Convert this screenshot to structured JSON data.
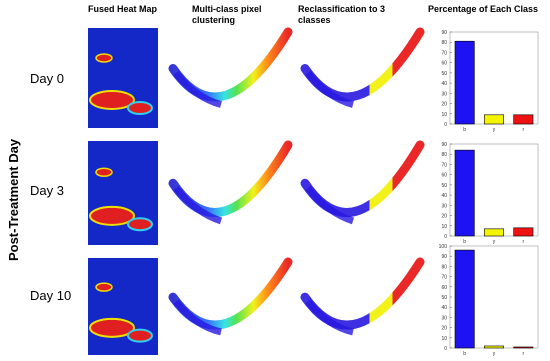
{
  "figure": {
    "column_titles": [
      "Fused Heat Map",
      "Multi-class pixel clustering",
      "Reclassification to 3 classes",
      "Percentage of Each Class"
    ],
    "row_labels": [
      "Day 0",
      "Day 3",
      "Day 10"
    ],
    "side_label": "Post-Treatment Day"
  },
  "chart_data": [
    {
      "type": "bar",
      "categories": [
        "b",
        "y",
        "r"
      ],
      "values": [
        81,
        9,
        9
      ],
      "colors": [
        "#1d12f2",
        "#f4f400",
        "#ee1111"
      ],
      "ylim": [
        0,
        90
      ],
      "yticks": [
        0,
        10,
        20,
        30,
        40,
        50,
        60,
        70,
        80,
        90
      ]
    },
    {
      "type": "bar",
      "categories": [
        "b",
        "y",
        "r"
      ],
      "values": [
        84,
        7,
        8
      ],
      "colors": [
        "#1d12f2",
        "#f4f400",
        "#ee1111"
      ],
      "ylim": [
        0,
        90
      ],
      "yticks": [
        0,
        10,
        20,
        30,
        40,
        50,
        60,
        70,
        80,
        90
      ]
    },
    {
      "type": "bar",
      "categories": [
        "b",
        "y",
        "r"
      ],
      "values": [
        96,
        2,
        1
      ],
      "colors": [
        "#1d12f2",
        "#f4f400",
        "#ee1111"
      ],
      "ylim": [
        0,
        100
      ],
      "yticks": [
        0,
        10,
        20,
        30,
        40,
        50,
        60,
        70,
        80,
        90,
        100
      ]
    }
  ]
}
